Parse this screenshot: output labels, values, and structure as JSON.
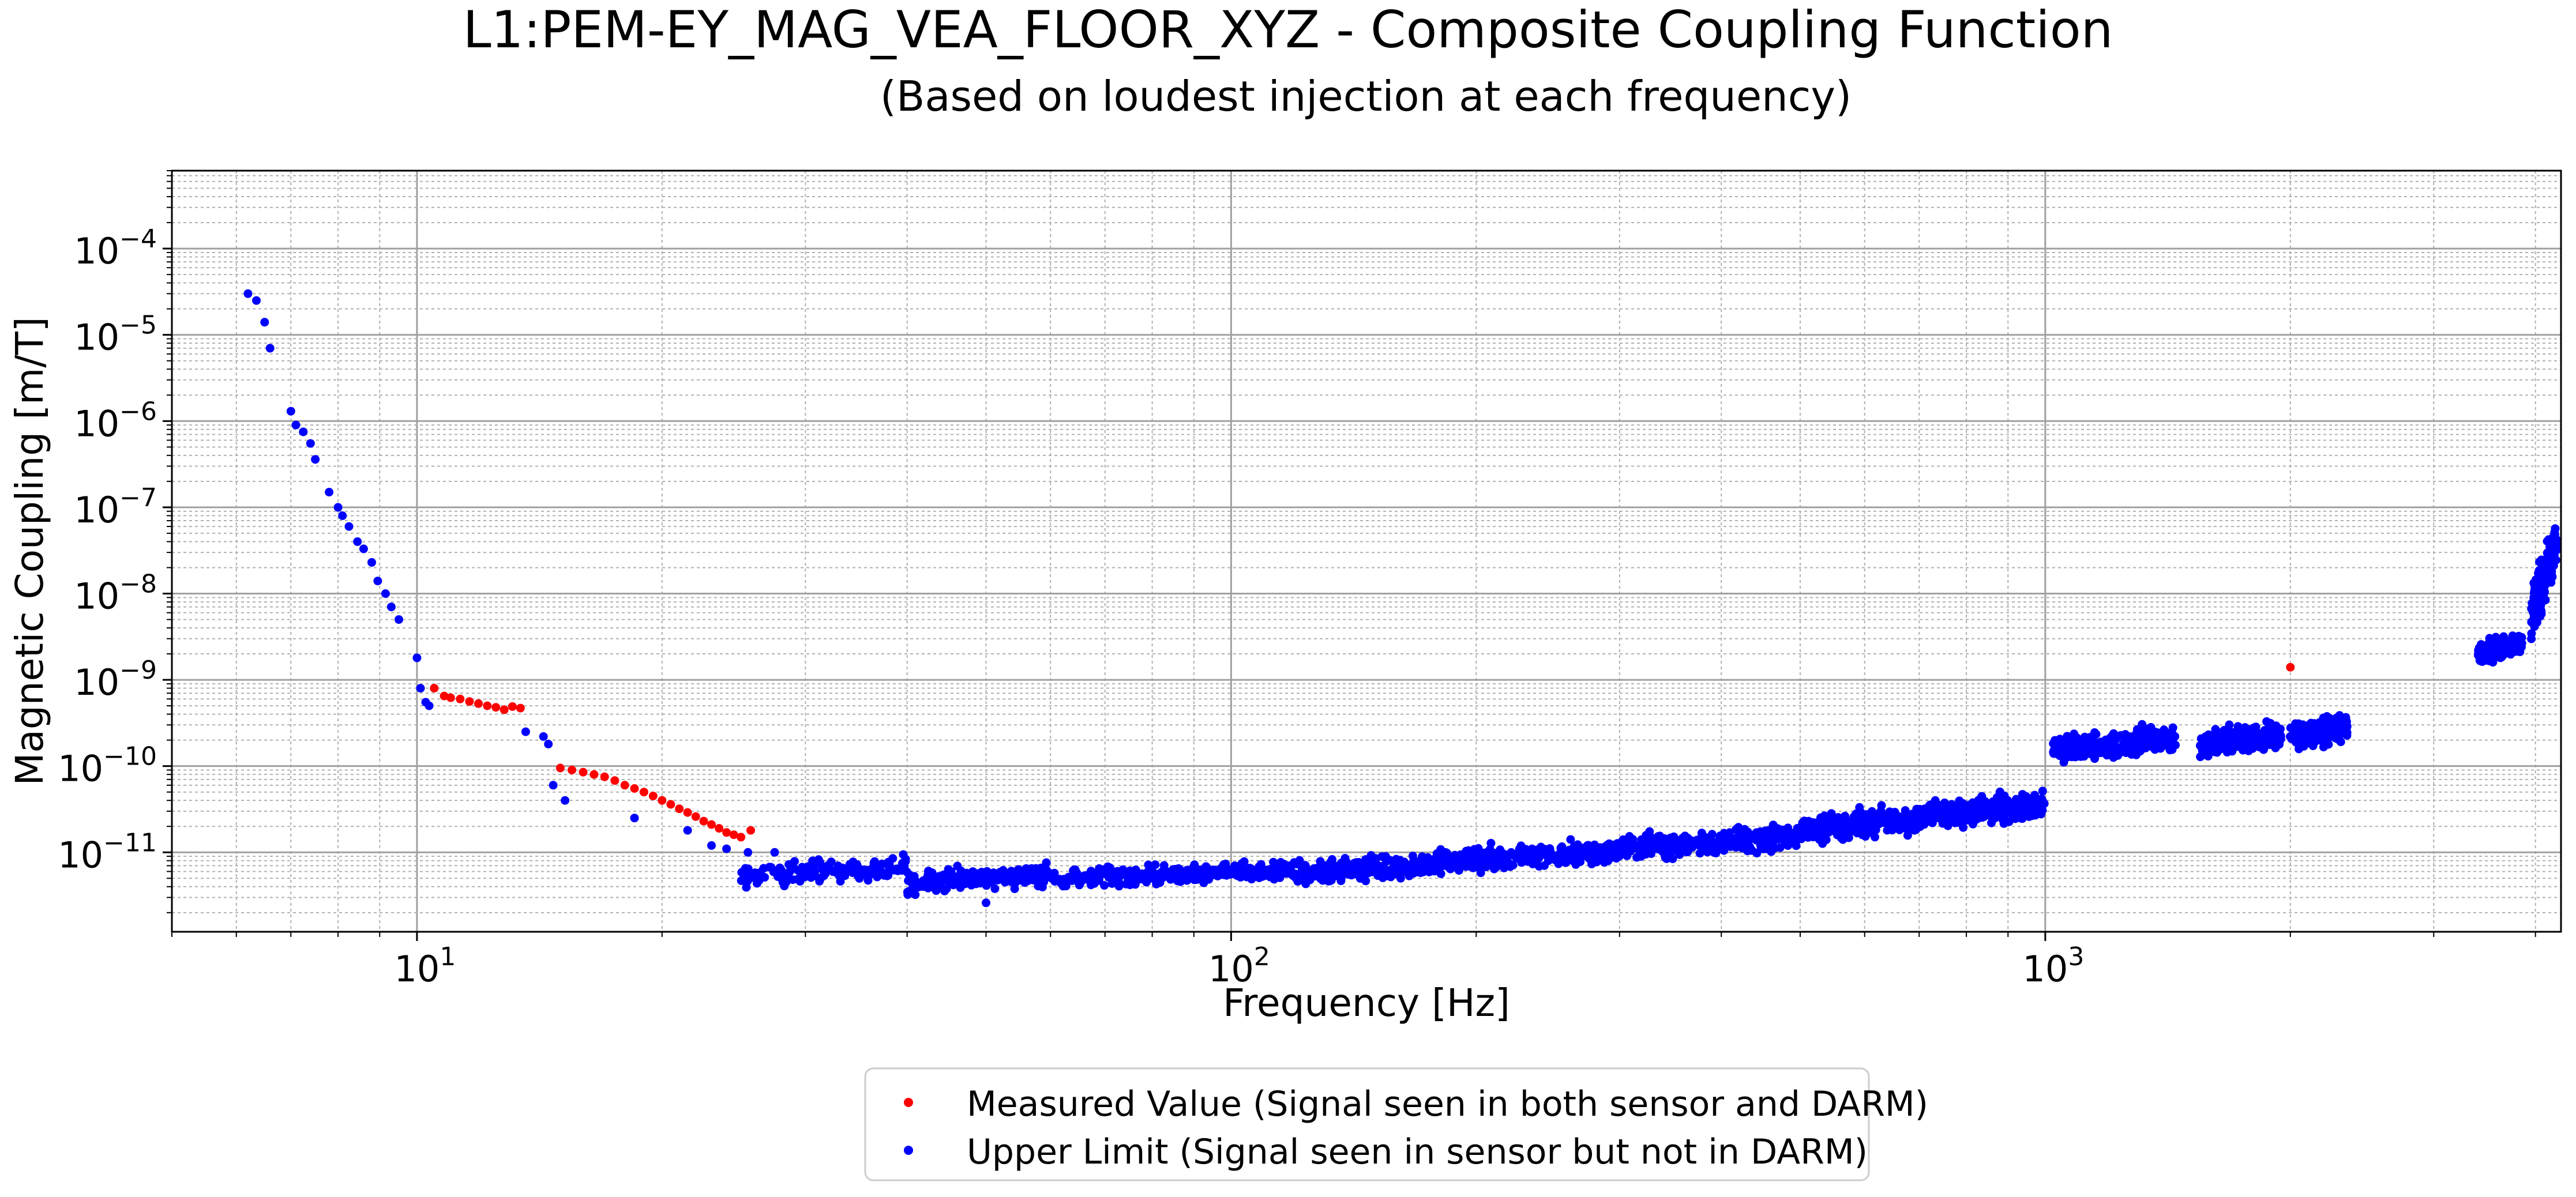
{
  "chart_data": {
    "type": "scatter",
    "title": "L1:PEM-EY_MAG_VEA_FLOOR_XYZ - Composite Coupling Function",
    "subtitle": "(Based on loudest injection at each frequency)",
    "xlabel": "Frequency [Hz]",
    "ylabel": "Magnetic Coupling [m/T]",
    "xscale": "log",
    "yscale": "log",
    "xlim": [
      5,
      4300
    ],
    "ylim": [
      1.2e-12,
      0.0008
    ],
    "grid": true,
    "legend_position": "bottom-center",
    "x_ticks": [
      {
        "value": 10,
        "base": "10",
        "exp": "1"
      },
      {
        "value": 100,
        "base": "10",
        "exp": "2"
      },
      {
        "value": 1000,
        "base": "10",
        "exp": "3"
      }
    ],
    "y_ticks": [
      {
        "value": 0.0001,
        "base": "10",
        "exp": "−4"
      },
      {
        "value": 1e-05,
        "base": "10",
        "exp": "−5"
      },
      {
        "value": 1e-06,
        "base": "10",
        "exp": "−6"
      },
      {
        "value": 1e-07,
        "base": "10",
        "exp": "−7"
      },
      {
        "value": 1e-08,
        "base": "10",
        "exp": "−8"
      },
      {
        "value": 1e-09,
        "base": "10",
        "exp": "−9"
      },
      {
        "value": 1e-10,
        "base": "10",
        "exp": "−10"
      },
      {
        "value": 1e-11,
        "base": "10",
        "exp": "−11"
      }
    ],
    "series": [
      {
        "name": "Measured Value (Signal seen in both sensor and DARM)",
        "color": "#ff0000",
        "points": [
          [
            10.5,
            8e-10
          ],
          [
            10.8,
            6.5e-10
          ],
          [
            11.0,
            6.2e-10
          ],
          [
            11.3,
            6e-10
          ],
          [
            11.6,
            5.6e-10
          ],
          [
            11.9,
            5.3e-10
          ],
          [
            12.2,
            5e-10
          ],
          [
            12.5,
            4.8e-10
          ],
          [
            12.8,
            4.5e-10
          ],
          [
            13.1,
            4.9e-10
          ],
          [
            13.4,
            4.7e-10
          ],
          [
            15.0,
            9.5e-11
          ],
          [
            15.5,
            9e-11
          ],
          [
            16.0,
            8.5e-11
          ],
          [
            16.5,
            8e-11
          ],
          [
            17.0,
            7.5e-11
          ],
          [
            17.5,
            6.8e-11
          ],
          [
            18.0,
            6e-11
          ],
          [
            18.5,
            5.5e-11
          ],
          [
            19.0,
            5e-11
          ],
          [
            19.5,
            4.5e-11
          ],
          [
            20.0,
            4e-11
          ],
          [
            20.5,
            3.6e-11
          ],
          [
            21.0,
            3.2e-11
          ],
          [
            21.5,
            2.9e-11
          ],
          [
            22.0,
            2.6e-11
          ],
          [
            22.5,
            2.3e-11
          ],
          [
            23.0,
            2.1e-11
          ],
          [
            23.5,
            1.9e-11
          ],
          [
            24.0,
            1.7e-11
          ],
          [
            24.5,
            1.6e-11
          ],
          [
            25.0,
            1.5e-11
          ],
          [
            25.7,
            1.8e-11
          ],
          [
            2000,
            1.4e-09
          ]
        ]
      },
      {
        "name": "Upper Limit (Signal seen in sensor but not in DARM)",
        "color": "#0000ff",
        "points": [
          [
            6.2,
            3e-05
          ],
          [
            6.35,
            2.5e-05
          ],
          [
            6.5,
            1.4e-05
          ],
          [
            6.6,
            7e-06
          ],
          [
            7.0,
            1.3e-06
          ],
          [
            7.1,
            9e-07
          ],
          [
            7.25,
            7.5e-07
          ],
          [
            7.4,
            5.5e-07
          ],
          [
            7.5,
            3.6e-07
          ],
          [
            7.8,
            1.5e-07
          ],
          [
            8.0,
            1e-07
          ],
          [
            8.1,
            8e-08
          ],
          [
            8.25,
            6e-08
          ],
          [
            8.45,
            4e-08
          ],
          [
            8.6,
            3.3e-08
          ],
          [
            8.8,
            2.3e-08
          ],
          [
            8.95,
            1.4e-08
          ],
          [
            9.15,
            1e-08
          ],
          [
            9.3,
            7e-09
          ],
          [
            9.5,
            5e-09
          ],
          [
            10.0,
            1.8e-09
          ],
          [
            10.1,
            8e-10
          ],
          [
            10.25,
            5.5e-10
          ],
          [
            10.35,
            5e-10
          ],
          [
            13.6,
            2.5e-10
          ],
          [
            14.3,
            2.2e-10
          ],
          [
            14.5,
            1.8e-10
          ],
          [
            14.7,
            6e-11
          ],
          [
            15.2,
            4e-11
          ],
          [
            18.5,
            2.5e-11
          ],
          [
            21.5,
            1.8e-11
          ],
          [
            23.0,
            1.2e-11
          ],
          [
            24.0,
            1.1e-11
          ],
          [
            25.5,
            1e-11
          ],
          [
            27.5,
            1e-11
          ],
          [
            50,
            2.6e-12
          ]
        ],
        "bands": [
          {
            "x": [
              25,
              40
            ],
            "y_center": 6e-12,
            "spread_dex": 0.12,
            "count": 160
          },
          {
            "x": [
              40,
              60
            ],
            "y_center": 5e-12,
            "spread_dex": 0.12,
            "count": 190
          },
          {
            "x": [
              60,
              120
            ],
            "y_center": 5.5e-12,
            "spread_dex": 0.1,
            "count": 320
          },
          {
            "x": [
              120,
              180
            ],
            "y_center": 6.5e-12,
            "spread_dex": 0.12,
            "count": 230
          },
          {
            "x": [
              180,
              300
            ],
            "y_center": 9e-12,
            "spread_dex": 0.12,
            "count": 320
          },
          {
            "x": [
              300,
              500
            ],
            "y_center": 1.3e-11,
            "spread_dex": 0.13,
            "count": 320
          },
          {
            "x": [
              500,
              700
            ],
            "y_center": 2.1e-11,
            "spread_dex": 0.14,
            "count": 280
          },
          {
            "x": [
              700,
              1000
            ],
            "y_center": 3.1e-11,
            "spread_dex": 0.14,
            "count": 280
          },
          {
            "x": [
              1020,
              1450
            ],
            "y_center": 1.8e-10,
            "spread_dex": 0.14,
            "count": 320
          },
          {
            "x": [
              1550,
              1950
            ],
            "y_center": 2e-10,
            "spread_dex": 0.13,
            "count": 260
          },
          {
            "x": [
              1990,
              2350
            ],
            "y_center": 2.5e-10,
            "spread_dex": 0.14,
            "count": 240
          },
          {
            "x": [
              3400,
              3850
            ],
            "y_center": 2.3e-09,
            "spread_dex": 0.12,
            "count": 170
          },
          {
            "x": [
              3950,
              4250
            ],
            "y_center": 1.5e-08,
            "spread_dex": 0.3,
            "count": 170
          }
        ]
      }
    ]
  }
}
